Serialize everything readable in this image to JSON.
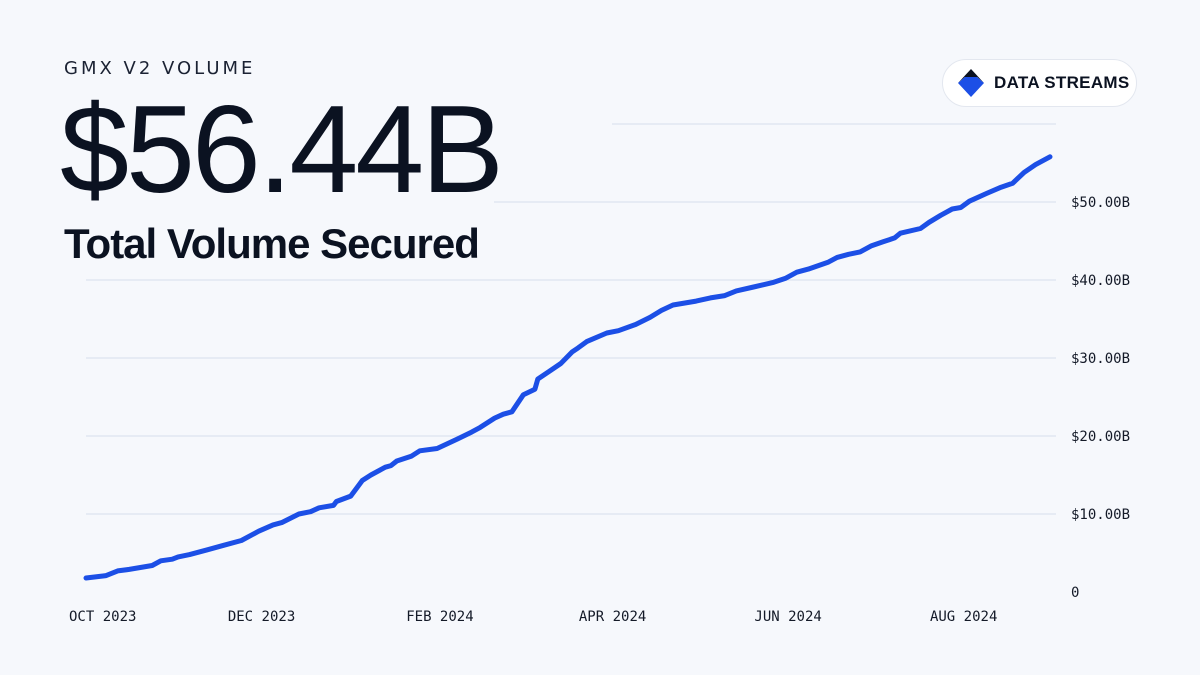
{
  "header": {
    "kicker": "GMX V2 VOLUME",
    "headline_value": "$56.44B",
    "subtitle": "Total Volume Secured"
  },
  "badge": {
    "label": "DATA STREAMS",
    "icon": "data-streams-logo-icon"
  },
  "colors": {
    "background": "#f6f8fc",
    "line": "#1c4fe6",
    "grid": "#d7deeb",
    "text": "#0b1221"
  },
  "chart_data": {
    "type": "line",
    "title": "",
    "xlabel": "",
    "ylabel": "",
    "x_range": [
      "2023-10-01",
      "2024-08-31"
    ],
    "x_ticks": [
      {
        "date": "2023-10-01",
        "label": "OCT 2023"
      },
      {
        "date": "2023-12-01",
        "label": "DEC 2023"
      },
      {
        "date": "2024-02-01",
        "label": "FEB 2024"
      },
      {
        "date": "2024-04-01",
        "label": "APR 2024"
      },
      {
        "date": "2024-06-01",
        "label": "JUN 2024"
      },
      {
        "date": "2024-08-01",
        "label": "AUG 2024"
      }
    ],
    "ylim": [
      0,
      60
    ],
    "y_unit": "billions USD",
    "y_ticks": [
      {
        "value": 0,
        "label": "0"
      },
      {
        "value": 10,
        "label": "$10.00B"
      },
      {
        "value": 20,
        "label": "$20.00B"
      },
      {
        "value": 30,
        "label": "$30.00B"
      },
      {
        "value": 40,
        "label": "$40.00B"
      },
      {
        "value": 50,
        "label": "$50.00B"
      },
      {
        "value": 60,
        "label": ""
      }
    ],
    "grid": true,
    "series": [
      {
        "points": [
          [
            "2023-10-01",
            1.8
          ],
          [
            "2023-10-08",
            2.1
          ],
          [
            "2023-10-12",
            2.7
          ],
          [
            "2023-10-16",
            2.9
          ],
          [
            "2023-10-24",
            3.4
          ],
          [
            "2023-10-27",
            4.0
          ],
          [
            "2023-10-31",
            4.2
          ],
          [
            "2023-11-02",
            4.5
          ],
          [
            "2023-11-06",
            4.8
          ],
          [
            "2023-11-12",
            5.4
          ],
          [
            "2023-11-18",
            6.0
          ],
          [
            "2023-11-24",
            6.6
          ],
          [
            "2023-11-30",
            7.8
          ],
          [
            "2023-12-05",
            8.6
          ],
          [
            "2023-12-08",
            8.9
          ],
          [
            "2023-12-14",
            10.0
          ],
          [
            "2023-12-18",
            10.3
          ],
          [
            "2023-12-21",
            10.8
          ],
          [
            "2023-12-26",
            11.1
          ],
          [
            "2023-12-27",
            11.6
          ],
          [
            "2024-01-01",
            12.3
          ],
          [
            "2024-01-05",
            14.3
          ],
          [
            "2024-01-08",
            15.0
          ],
          [
            "2024-01-13",
            16.0
          ],
          [
            "2024-01-15",
            16.2
          ],
          [
            "2024-01-17",
            16.8
          ],
          [
            "2024-01-22",
            17.4
          ],
          [
            "2024-01-25",
            18.1
          ],
          [
            "2024-01-31",
            18.4
          ],
          [
            "2024-02-07",
            19.6
          ],
          [
            "2024-02-12",
            20.5
          ],
          [
            "2024-02-15",
            21.1
          ],
          [
            "2024-02-20",
            22.3
          ],
          [
            "2024-02-23",
            22.8
          ],
          [
            "2024-02-26",
            23.1
          ],
          [
            "2024-03-01",
            25.3
          ],
          [
            "2024-03-05",
            26.0
          ],
          [
            "2024-03-06",
            27.3
          ],
          [
            "2024-03-10",
            28.3
          ],
          [
            "2024-03-14",
            29.3
          ],
          [
            "2024-03-18",
            30.8
          ],
          [
            "2024-03-20",
            31.3
          ],
          [
            "2024-03-23",
            32.1
          ],
          [
            "2024-03-30",
            33.2
          ],
          [
            "2024-04-03",
            33.5
          ],
          [
            "2024-04-09",
            34.3
          ],
          [
            "2024-04-14",
            35.2
          ],
          [
            "2024-04-18",
            36.1
          ],
          [
            "2024-04-22",
            36.8
          ],
          [
            "2024-04-30",
            37.3
          ],
          [
            "2024-05-05",
            37.7
          ],
          [
            "2024-05-10",
            38.0
          ],
          [
            "2024-05-14",
            38.6
          ],
          [
            "2024-05-20",
            39.1
          ],
          [
            "2024-05-27",
            39.7
          ],
          [
            "2024-05-31",
            40.2
          ],
          [
            "2024-06-04",
            41.0
          ],
          [
            "2024-06-08",
            41.4
          ],
          [
            "2024-06-15",
            42.3
          ],
          [
            "2024-06-18",
            42.9
          ],
          [
            "2024-06-22",
            43.3
          ],
          [
            "2024-06-26",
            43.6
          ],
          [
            "2024-06-30",
            44.4
          ],
          [
            "2024-07-04",
            44.9
          ],
          [
            "2024-07-08",
            45.4
          ],
          [
            "2024-07-10",
            46.0
          ],
          [
            "2024-07-17",
            46.6
          ],
          [
            "2024-07-20",
            47.4
          ],
          [
            "2024-07-24",
            48.3
          ],
          [
            "2024-07-28",
            49.1
          ],
          [
            "2024-07-31",
            49.3
          ],
          [
            "2024-08-03",
            50.1
          ],
          [
            "2024-08-09",
            51.1
          ],
          [
            "2024-08-14",
            51.9
          ],
          [
            "2024-08-18",
            52.4
          ],
          [
            "2024-08-22",
            53.8
          ],
          [
            "2024-08-26",
            54.8
          ],
          [
            "2024-08-31",
            55.8
          ]
        ]
      }
    ]
  }
}
